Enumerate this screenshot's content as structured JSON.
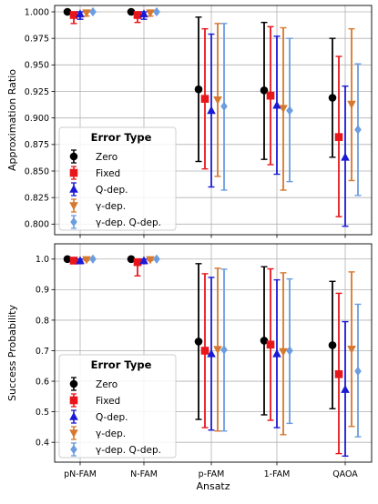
{
  "chart_data": [
    {
      "type": "scatter",
      "panel": "top",
      "ylabel": "Approximation Ratio",
      "ylim": [
        0.79,
        1.006
      ],
      "yticks": [
        "1.000",
        "0.975",
        "0.950",
        "0.925",
        "0.900",
        "0.875",
        "0.850",
        "0.825",
        "0.800"
      ],
      "ytick_values": [
        1.0,
        0.975,
        0.95,
        0.925,
        0.9,
        0.875,
        0.85,
        0.825,
        0.8
      ],
      "grid": true,
      "legend": {
        "title": "Error Type",
        "placement": "lower-left"
      },
      "series": [
        {
          "name": "Zero",
          "color": "#000000",
          "marker": "circle",
          "points": [
            [
              1.0,
              1.0,
              1.0
            ],
            [
              1.0,
              1.0,
              1.0
            ],
            [
              0.927,
              0.859,
              0.995
            ],
            [
              0.926,
              0.861,
              0.99
            ],
            [
              0.919,
              0.863,
              0.975
            ]
          ]
        },
        {
          "name": "Fixed",
          "color": "#e8161a",
          "marker": "square",
          "points": [
            [
              0.997,
              0.989,
              1.0
            ],
            [
              0.997,
              0.99,
              1.0
            ],
            [
              0.918,
              0.852,
              0.984
            ],
            [
              0.921,
              0.856,
              0.986
            ],
            [
              0.882,
              0.807,
              0.958
            ]
          ]
        },
        {
          "name": "Q-dep.",
          "color": "#1a1ad6",
          "marker": "triangle-up",
          "points": [
            [
              0.998,
              0.993,
              1.0
            ],
            [
              0.998,
              0.993,
              1.0
            ],
            [
              0.907,
              0.835,
              0.979
            ],
            [
              0.912,
              0.847,
              0.977
            ],
            [
              0.863,
              0.798,
              0.93
            ]
          ]
        },
        {
          "name": "γ-dep.",
          "color": "#d6782e",
          "marker": "triangle-down",
          "points": [
            [
              0.999,
              0.996,
              1.0
            ],
            [
              0.999,
              0.996,
              1.0
            ],
            [
              0.917,
              0.845,
              0.989
            ],
            [
              0.909,
              0.832,
              0.985
            ],
            [
              0.913,
              0.841,
              0.984
            ]
          ]
        },
        {
          "name": "γ-dep. Q-dep.",
          "color": "#6b9de0",
          "marker": "diamond",
          "points": [
            [
              1.0,
              1.0,
              1.0
            ],
            [
              1.0,
              1.0,
              1.0
            ],
            [
              0.911,
              0.832,
              0.989
            ],
            [
              0.907,
              0.84,
              0.975
            ],
            [
              0.889,
              0.827,
              0.951
            ]
          ]
        }
      ]
    },
    {
      "type": "scatter",
      "panel": "bottom",
      "ylabel": "Success Probability",
      "xlabel": "Ansatz",
      "ylim": [
        0.335,
        1.05
      ],
      "yticks": [
        "1.0",
        "0.9",
        "0.8",
        "0.7",
        "0.6",
        "0.5",
        "0.4"
      ],
      "ytick_values": [
        1.0,
        0.9,
        0.8,
        0.7,
        0.6,
        0.5,
        0.4
      ],
      "grid": true,
      "legend": {
        "title": "Error Type",
        "placement": "lower-left"
      },
      "series": [
        {
          "name": "Zero",
          "color": "#000000",
          "marker": "circle",
          "points": [
            [
              1.0,
              1.0,
              1.0
            ],
            [
              1.0,
              1.0,
              1.0
            ],
            [
              0.73,
              0.475,
              0.985
            ],
            [
              0.733,
              0.49,
              0.975
            ],
            [
              0.718,
              0.51,
              0.927
            ]
          ]
        },
        {
          "name": "Fixed",
          "color": "#e8161a",
          "marker": "square",
          "points": [
            [
              0.995,
              0.985,
              1.0
            ],
            [
              0.99,
              0.945,
              1.0
            ],
            [
              0.7,
              0.448,
              0.952
            ],
            [
              0.72,
              0.472,
              0.968
            ],
            [
              0.623,
              0.363,
              0.888
            ]
          ]
        },
        {
          "name": "Q-dep.",
          "color": "#1a1ad6",
          "marker": "triangle-up",
          "points": [
            [
              0.995,
              0.985,
              1.0
            ],
            [
              0.995,
              0.985,
              1.0
            ],
            [
              0.69,
              0.44,
              0.94
            ],
            [
              0.69,
              0.448,
              0.932
            ],
            [
              0.573,
              0.355,
              0.795
            ]
          ]
        },
        {
          "name": "γ-dep.",
          "color": "#d6782e",
          "marker": "triangle-down",
          "points": [
            [
              0.998,
              0.995,
              1.0
            ],
            [
              0.998,
              0.995,
              1.0
            ],
            [
              0.704,
              0.437,
              0.97
            ],
            [
              0.697,
              0.425,
              0.955
            ],
            [
              0.705,
              0.452,
              0.958
            ]
          ]
        },
        {
          "name": "γ-dep. Q-dep.",
          "color": "#6b9de0",
          "marker": "diamond",
          "points": [
            [
              1.0,
              1.0,
              1.0
            ],
            [
              1.0,
              1.0,
              1.0
            ],
            [
              0.703,
              0.437,
              0.967
            ],
            [
              0.7,
              0.462,
              0.935
            ],
            [
              0.633,
              0.418,
              0.852
            ]
          ]
        }
      ]
    }
  ],
  "categories": [
    "pN-FAM",
    "N-FAM",
    "p-FAM",
    "1-FAM",
    "QAOA"
  ]
}
